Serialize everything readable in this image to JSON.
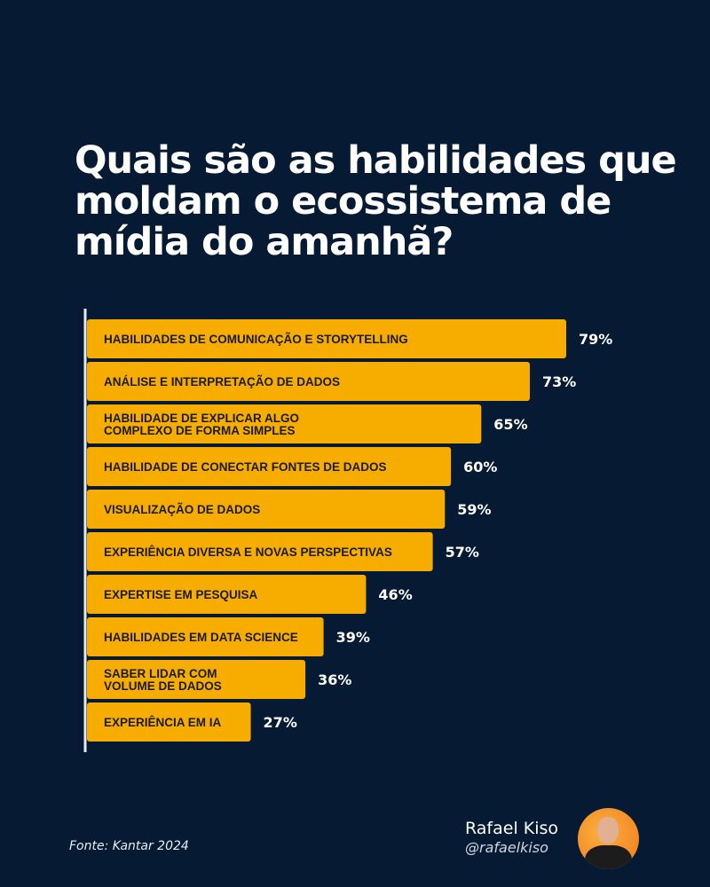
{
  "title": "Quais são as habilidades que moldam o ecossistema de mídia do amanhã?",
  "chart_data": {
    "type": "bar",
    "orientation": "horizontal",
    "categories": [
      [
        "HABILIDADES DE COMUNICAÇÃO E STORYTELLING"
      ],
      [
        "ANÁLISE E INTERPRETAÇÃO DE DADOS"
      ],
      [
        "HABILIDADE DE EXPLICAR ALGO",
        "COMPLEXO DE FORMA SIMPLES"
      ],
      [
        "HABILIDADE DE CONECTAR FONTES DE DADOS"
      ],
      [
        "VISUALIZAÇÃO DE DADOS"
      ],
      [
        "EXPERIÊNCIA DIVERSA E NOVAS PERSPECTIVAS"
      ],
      [
        "EXPERTISE EM PESQUISA"
      ],
      [
        "HABILIDADES EM DATA SCIENCE"
      ],
      [
        "SABER LIDAR COM",
        "VOLUME DE DADOS"
      ],
      [
        "EXPERIÊNCIA EM IA"
      ]
    ],
    "values": [
      79,
      73,
      65,
      60,
      59,
      57,
      46,
      39,
      36,
      27
    ],
    "value_labels": [
      "79%",
      "73%",
      "65%",
      "60%",
      "59%",
      "57%",
      "46%",
      "39%",
      "36%",
      "27%"
    ],
    "unit": "%",
    "grid": false,
    "bar_color": "#f7ad00",
    "background_color": "#061a33"
  },
  "source": "Fonte: Kantar 2024",
  "author": {
    "name": "Rafael Kiso",
    "handle": "@rafaelkiso"
  }
}
